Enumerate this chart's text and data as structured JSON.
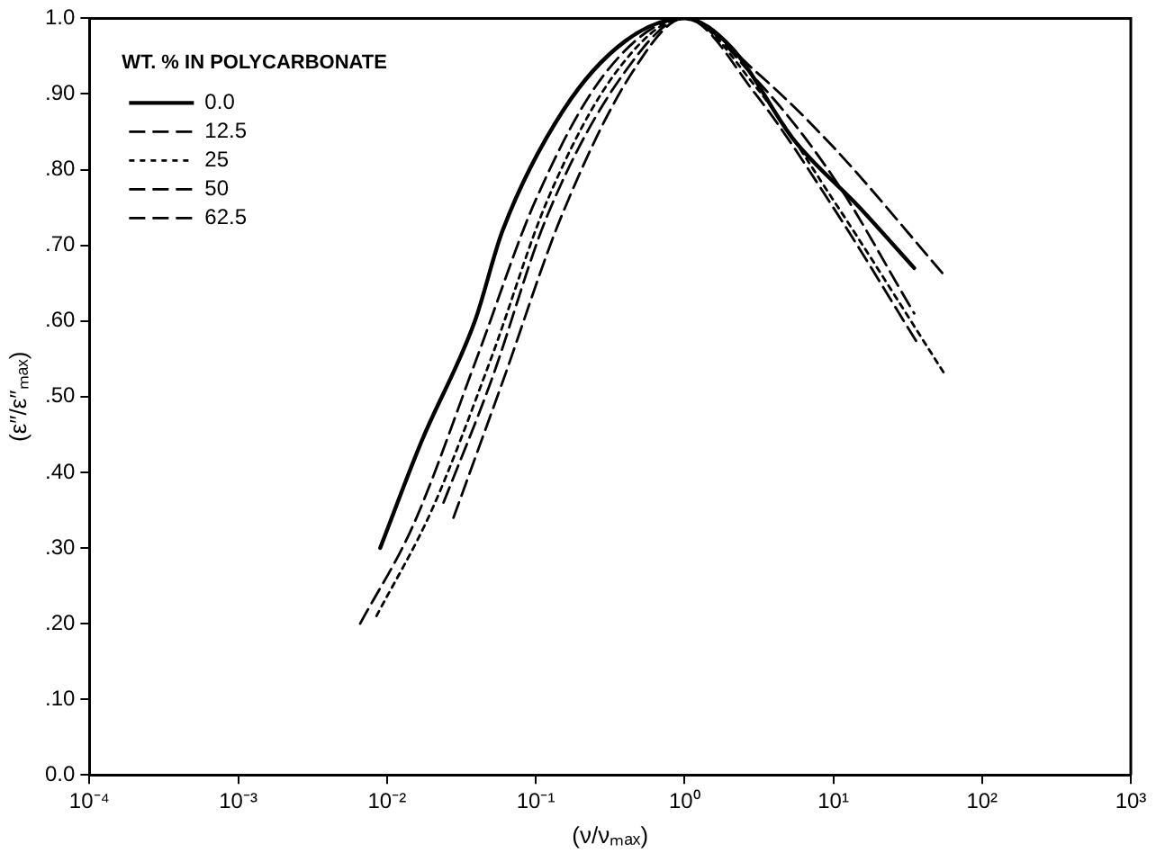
{
  "chart_data": {
    "type": "line",
    "xlabel": "(ν/νₘₐₓ)",
    "ylabel": "(ε″/ε″ₘₐₓ)",
    "legend_title": "WT. % IN POLYCARBONATE",
    "legend": "top left",
    "log": "x",
    "grid": false,
    "marker": "none",
    "xlim": [
      0.0001,
      1000
    ],
    "xticks": [
      {
        "value": 0.0001,
        "label": "10⁻⁴"
      },
      {
        "value": 0.001,
        "label": "10⁻³"
      },
      {
        "value": 0.01,
        "label": "10⁻²"
      },
      {
        "value": 0.1,
        "label": "10⁻¹"
      },
      {
        "value": 1,
        "label": "10⁰"
      },
      {
        "value": 10,
        "label": "10¹"
      },
      {
        "value": 100,
        "label": "10²"
      },
      {
        "value": 1000,
        "label": "10³"
      }
    ],
    "ylim": [
      0,
      1
    ],
    "yticks": [
      {
        "value": 0,
        "label": "0.0"
      },
      {
        "value": 0.1,
        "label": ".10"
      },
      {
        "value": 0.2,
        "label": ".20"
      },
      {
        "value": 0.3,
        "label": ".30"
      },
      {
        "value": 0.4,
        "label": ".40"
      },
      {
        "value": 0.5,
        "label": ".50"
      },
      {
        "value": 0.6,
        "label": ".60"
      },
      {
        "value": 0.7,
        "label": ".70"
      },
      {
        "value": 0.8,
        "label": ".80"
      },
      {
        "value": 0.9,
        "label": ".90"
      },
      {
        "value": 1,
        "label": "1.0"
      }
    ],
    "series": [
      {
        "name": "0.0",
        "color": "#000000",
        "line_style": "solid",
        "x": [
          0.009,
          0.017,
          0.039,
          0.06,
          0.155,
          0.4,
          1,
          2.1,
          5.4,
          15,
          35
        ],
        "values": [
          0.3,
          0.44,
          0.6,
          0.72,
          0.88,
          0.97,
          1.0,
          0.96,
          0.84,
          0.75,
          0.67
        ]
      },
      {
        "name": "12.5",
        "color": "#000000",
        "line_style": "dashed",
        "x": [
          0.024,
          0.05,
          0.12,
          0.4,
          1,
          3,
          10,
          37
        ],
        "values": [
          0.36,
          0.52,
          0.74,
          0.93,
          1.0,
          0.9,
          0.75,
          0.57
        ]
      },
      {
        "name": "25",
        "color": "#000000",
        "line_style": "dotted",
        "x": [
          0.0085,
          0.02,
          0.05,
          0.12,
          0.35,
          1,
          3,
          10,
          56
        ],
        "values": [
          0.21,
          0.35,
          0.55,
          0.76,
          0.93,
          1.0,
          0.91,
          0.76,
          0.53
        ]
      },
      {
        "name": "50",
        "color": "#000000",
        "line_style": "dashed",
        "x": [
          0.028,
          0.06,
          0.15,
          0.45,
          1,
          3,
          10,
          35
        ],
        "values": [
          0.34,
          0.52,
          0.74,
          0.93,
          1.0,
          0.92,
          0.79,
          0.61
        ]
      },
      {
        "name": "62.5",
        "color": "#000000",
        "line_style": "dashed",
        "x": [
          0.0066,
          0.015,
          0.04,
          0.1,
          0.3,
          1,
          3,
          10,
          56
        ],
        "values": [
          0.2,
          0.33,
          0.55,
          0.76,
          0.93,
          1.0,
          0.93,
          0.83,
          0.66
        ]
      }
    ]
  }
}
